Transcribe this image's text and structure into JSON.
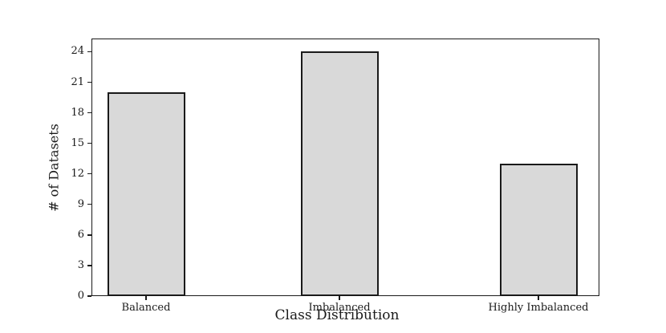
{
  "chart_data": {
    "type": "bar",
    "title": "",
    "categories": [
      "Balanced",
      "Imbalanced",
      "Highly Imbalanced"
    ],
    "values": [
      20,
      24,
      13
    ],
    "xlabel": "Class Distribution",
    "ylabel": "# of Datasets",
    "ylim": [
      0,
      25.3
    ],
    "yticks": [
      0,
      3,
      6,
      9,
      12,
      15,
      18,
      21,
      24
    ],
    "grid": false,
    "legend": false,
    "bar_fill_color": "#d9d9d9",
    "bar_edge_color": "#1a1a1a",
    "axis_color": "#1a1a1a",
    "background_color": "#ffffff"
  }
}
